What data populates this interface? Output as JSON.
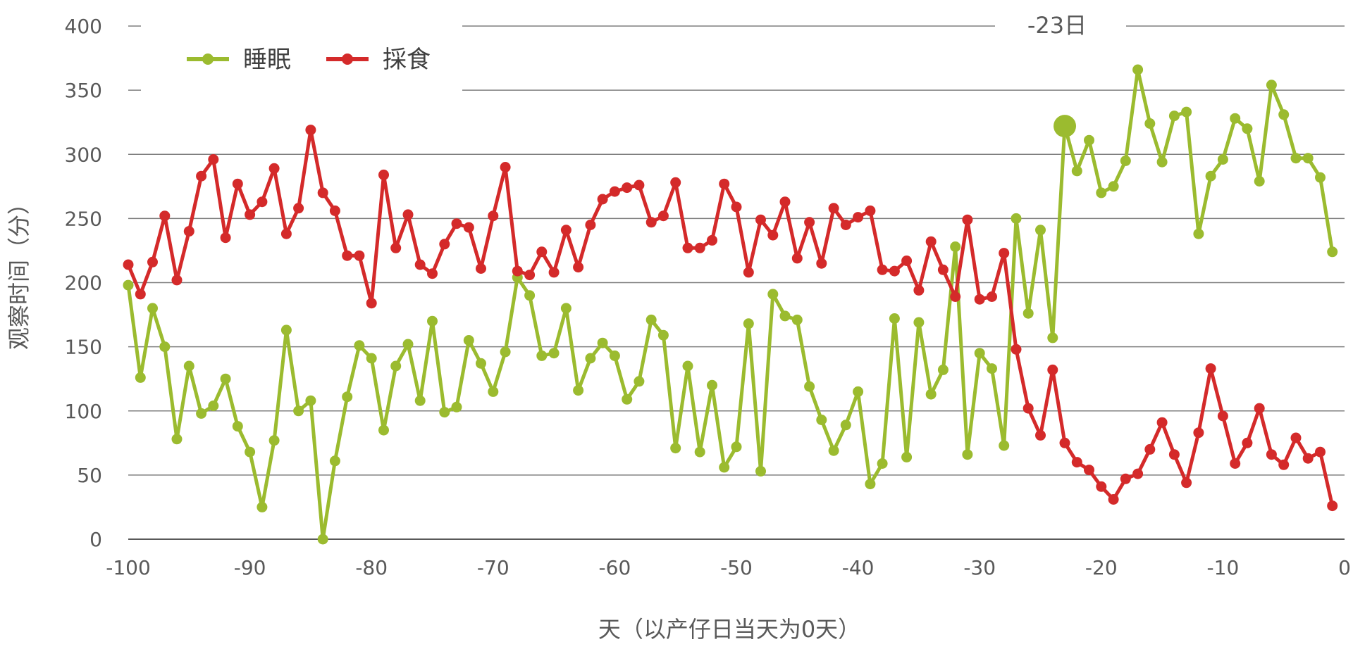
{
  "chart_data": {
    "type": "line",
    "xlabel": "天（以产仔日当天为0天）",
    "ylabel": "观察时间（分）",
    "xlim": [
      -100,
      0
    ],
    "ylim": [
      0,
      400
    ],
    "x_ticks": [
      "-100",
      "-90",
      "-80",
      "-70",
      "-60",
      "-50",
      "-40",
      "-30",
      "-20",
      "-10",
      "0"
    ],
    "y_ticks": [
      "0",
      "50",
      "100",
      "150",
      "200",
      "250",
      "300",
      "350",
      "400"
    ],
    "grid": "horizontal",
    "legend_position": "top-left",
    "annotation": {
      "text": "-23日",
      "x": -23,
      "y_line": 400
    },
    "highlight_point": {
      "series": "睡眠",
      "x": -23,
      "y": 322
    },
    "series": [
      {
        "name": "睡眠",
        "color": "#9bbb2f",
        "x_start": -100,
        "values": [
          198,
          126,
          180,
          150,
          78,
          135,
          98,
          104,
          125,
          88,
          68,
          25,
          77,
          163,
          100,
          108,
          0,
          61,
          111,
          151,
          141,
          85,
          135,
          152,
          108,
          170,
          99,
          103,
          155,
          137,
          115,
          146,
          204,
          190,
          143,
          145,
          180,
          116,
          141,
          153,
          143,
          109,
          123,
          171,
          159,
          71,
          135,
          68,
          120,
          56,
          72,
          168,
          53,
          191,
          174,
          171,
          119,
          93,
          69,
          89,
          115,
          43,
          59,
          172,
          64,
          169,
          113,
          132,
          228,
          66,
          145,
          133,
          73,
          250,
          176,
          241,
          157,
          322,
          287,
          311,
          270,
          275,
          295,
          366,
          324,
          294,
          330,
          333,
          238,
          283,
          296,
          328,
          320,
          279,
          354,
          331,
          297,
          297,
          282,
          224
        ]
      },
      {
        "name": "採食",
        "color": "#d42a2a",
        "x_start": -100,
        "values": [
          214,
          191,
          216,
          252,
          202,
          240,
          283,
          296,
          235,
          277,
          253,
          263,
          289,
          238,
          258,
          319,
          270,
          256,
          221,
          221,
          184,
          284,
          227,
          253,
          214,
          207,
          230,
          246,
          243,
          211,
          252,
          290,
          209,
          206,
          224,
          208,
          241,
          212,
          245,
          265,
          271,
          274,
          276,
          247,
          252,
          278,
          227,
          227,
          233,
          277,
          259,
          208,
          249,
          237,
          263,
          219,
          247,
          215,
          258,
          245,
          251,
          256,
          210,
          209,
          217,
          194,
          232,
          210,
          189,
          249,
          187,
          189,
          223,
          148,
          102,
          81,
          132,
          75,
          60,
          54,
          41,
          31,
          47,
          51,
          70,
          91,
          66,
          44,
          83,
          133,
          96,
          59,
          75,
          102,
          66,
          58,
          79,
          63,
          68,
          26
        ]
      }
    ]
  }
}
